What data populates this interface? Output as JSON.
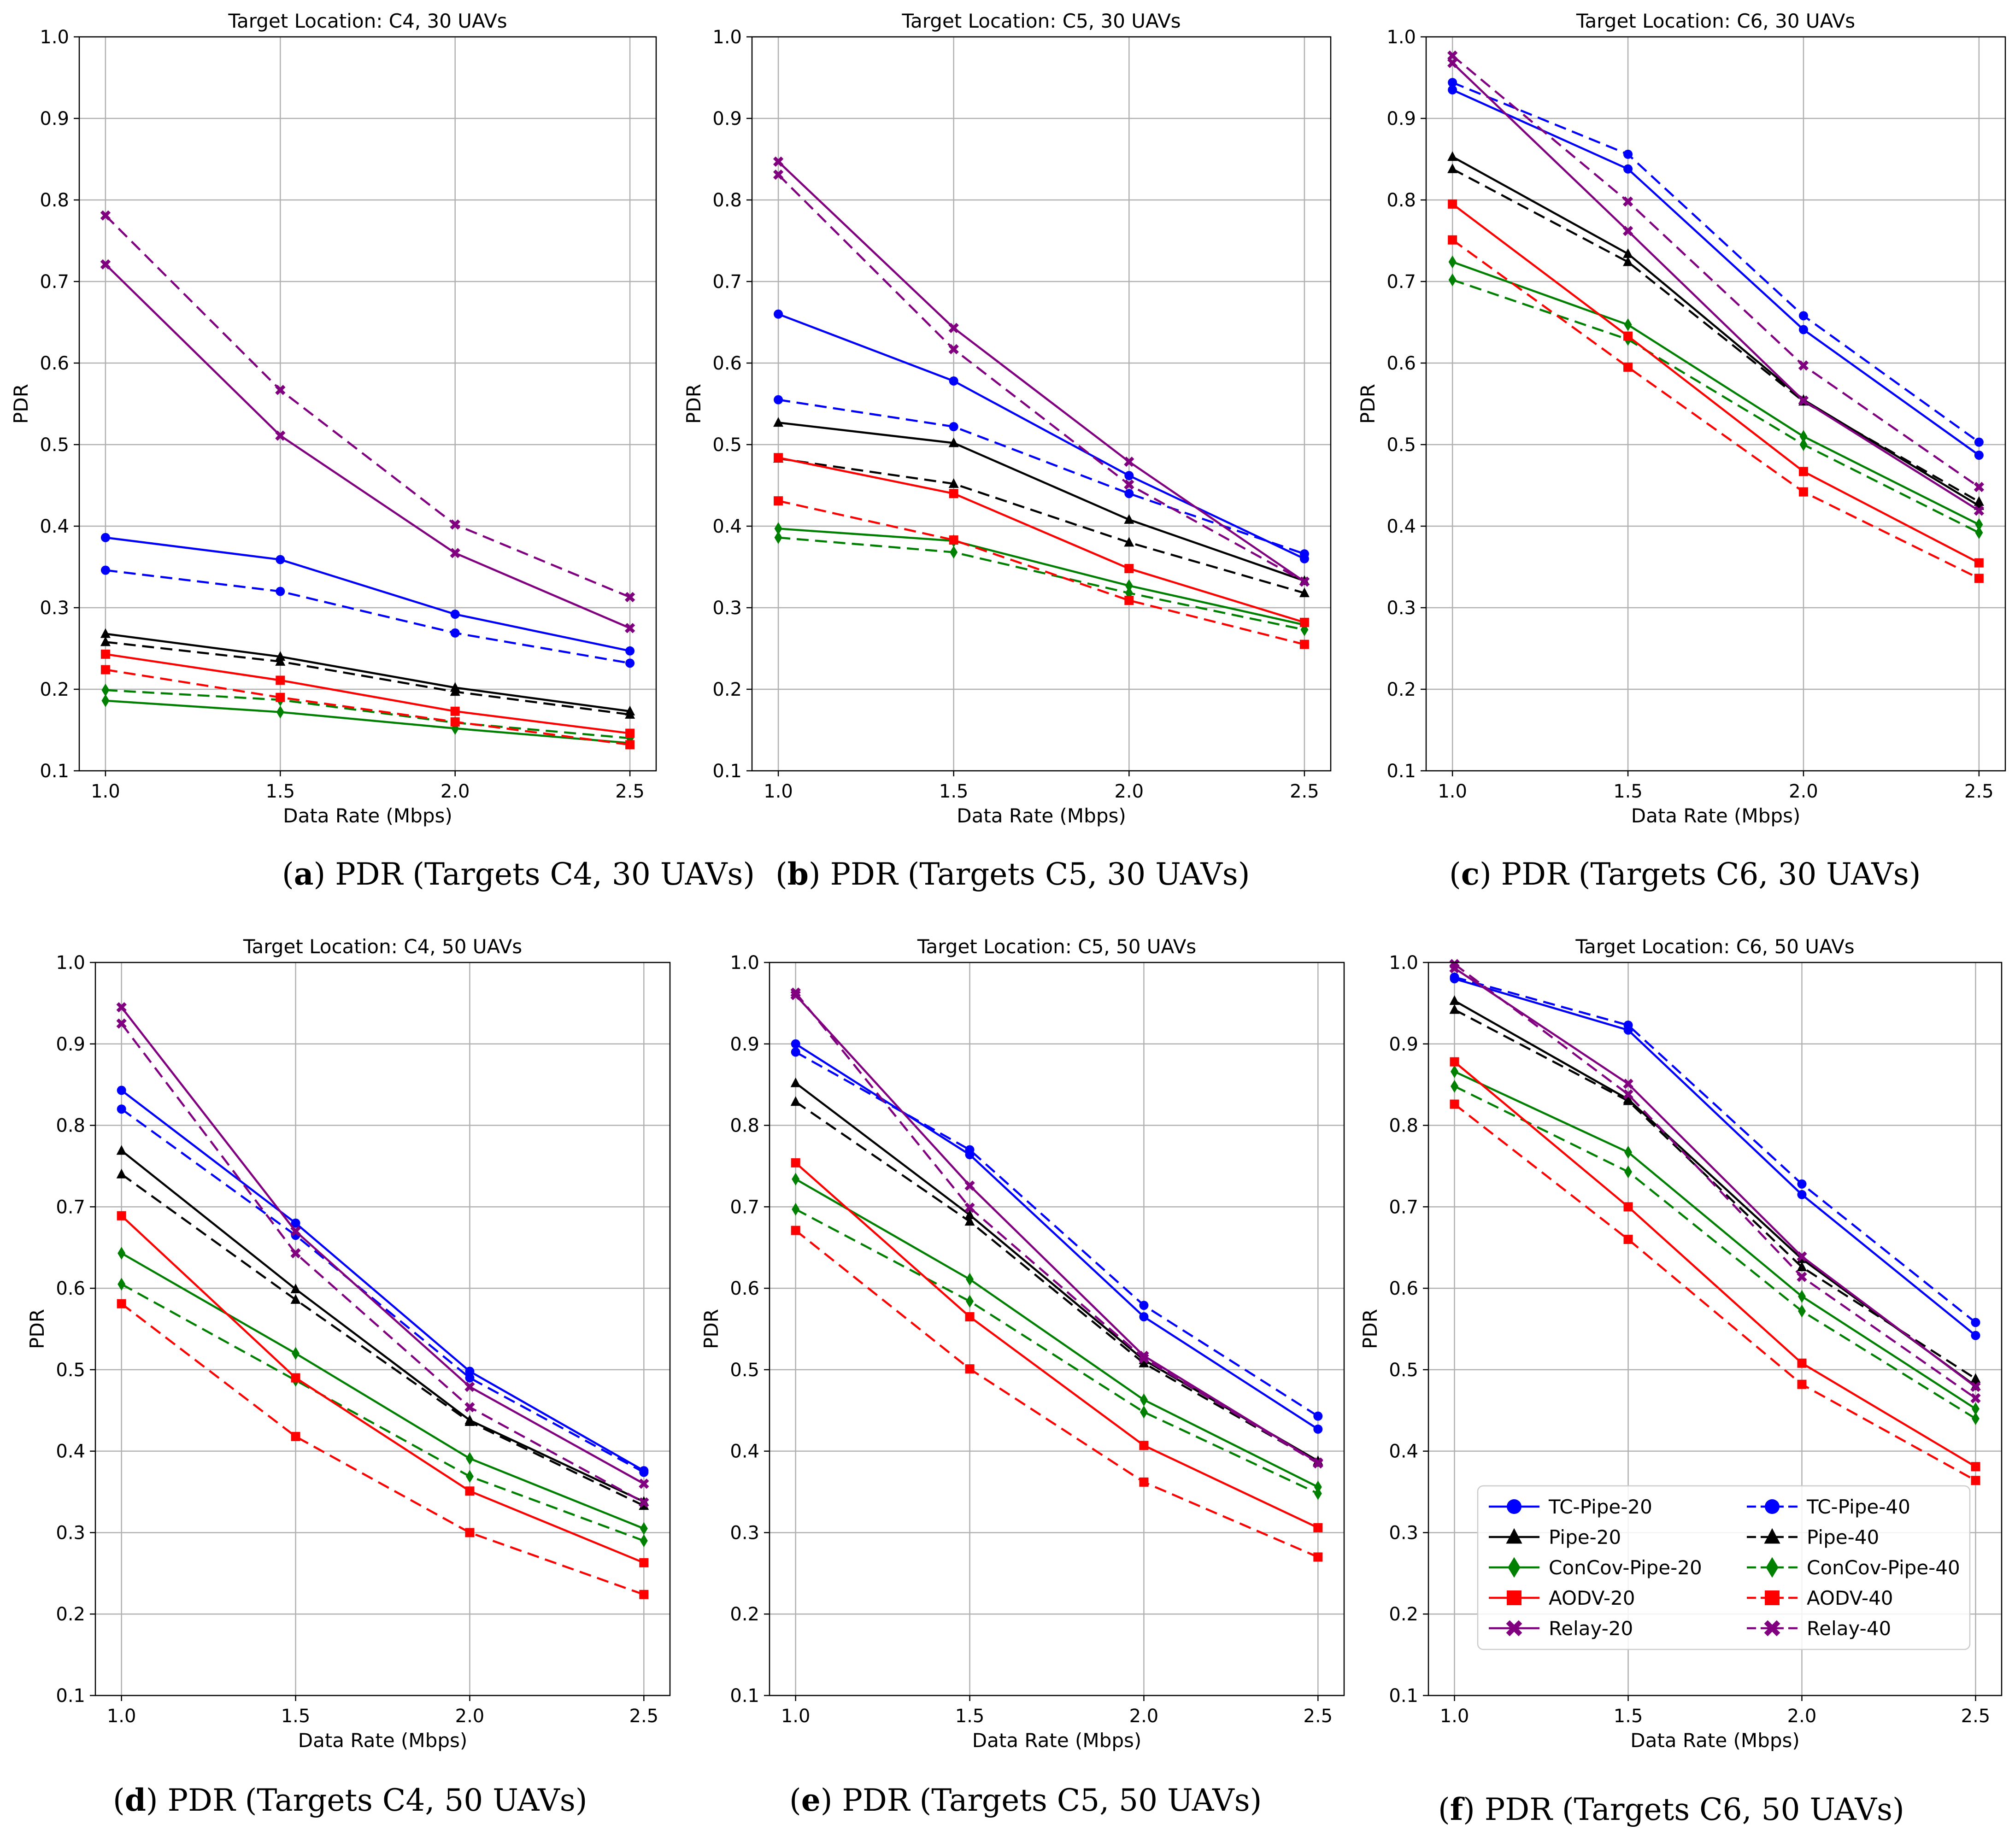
{
  "colors": {
    "TC-Pipe": "#0000ff",
    "Pipe": "#000000",
    "ConCov-Pipe": "#008000",
    "AODV": "#ff0000",
    "Relay": "#800080"
  },
  "legend": [
    {
      "label": "TC-Pipe-20",
      "method": "TC-Pipe",
      "marker": "circle",
      "dash": "solid"
    },
    {
      "label": "Pipe-20",
      "method": "Pipe",
      "marker": "triangle",
      "dash": "solid"
    },
    {
      "label": "ConCov-Pipe-20",
      "method": "ConCov-Pipe",
      "marker": "diamond",
      "dash": "solid"
    },
    {
      "label": "AODV-20",
      "method": "AODV",
      "marker": "square",
      "dash": "solid"
    },
    {
      "label": "Relay-20",
      "method": "Relay",
      "marker": "x",
      "dash": "solid"
    },
    {
      "label": "TC-Pipe-40",
      "method": "TC-Pipe",
      "marker": "circle",
      "dash": "dashed"
    },
    {
      "label": "Pipe-40",
      "method": "Pipe",
      "marker": "triangle",
      "dash": "dashed"
    },
    {
      "label": "ConCov-Pipe-40",
      "method": "ConCov-Pipe",
      "marker": "diamond",
      "dash": "dashed"
    },
    {
      "label": "AODV-40",
      "method": "AODV",
      "marker": "square",
      "dash": "dashed"
    },
    {
      "label": "Relay-40",
      "method": "Relay",
      "marker": "x",
      "dash": "dashed"
    }
  ],
  "chart_data": [
    {
      "type": "line",
      "title": "Target Location: C4, 30 UAVs",
      "caption_letter": "(a)",
      "caption_text": " PDR (Targets C4, 30 UAVs)",
      "xlabel": "Data Rate (Mbps)",
      "ylabel": "PDR",
      "x": [
        1.0,
        1.5,
        2.0,
        2.5
      ],
      "x_ticks": [
        "1.0",
        "1.5",
        "2.0",
        "2.5"
      ],
      "y_ticks": [
        "0.1",
        "0.2",
        "0.3",
        "0.4",
        "0.5",
        "0.6",
        "0.7",
        "0.8",
        "0.9",
        "1.0"
      ],
      "ylim": [
        0.1,
        1.0
      ],
      "grid": true,
      "series": [
        {
          "name": "TC-Pipe-20",
          "values": [
            0.386,
            0.359,
            0.292,
            0.247
          ]
        },
        {
          "name": "TC-Pipe-40",
          "values": [
            0.346,
            0.32,
            0.269,
            0.232
          ]
        },
        {
          "name": "Pipe-20",
          "values": [
            0.268,
            0.24,
            0.202,
            0.173
          ]
        },
        {
          "name": "Pipe-40",
          "values": [
            0.258,
            0.234,
            0.197,
            0.169
          ]
        },
        {
          "name": "ConCov-Pipe-20",
          "values": [
            0.186,
            0.172,
            0.152,
            0.134
          ]
        },
        {
          "name": "ConCov-Pipe-40",
          "values": [
            0.199,
            0.187,
            0.159,
            0.14
          ]
        },
        {
          "name": "AODV-20",
          "values": [
            0.243,
            0.211,
            0.173,
            0.146
          ]
        },
        {
          "name": "AODV-40",
          "values": [
            0.224,
            0.19,
            0.16,
            0.132
          ]
        },
        {
          "name": "Relay-20",
          "values": [
            0.721,
            0.511,
            0.367,
            0.275
          ]
        },
        {
          "name": "Relay-40",
          "values": [
            0.781,
            0.567,
            0.402,
            0.313
          ]
        }
      ]
    },
    {
      "type": "line",
      "title": "Target Location: C5, 30 UAVs",
      "caption_letter": "(b)",
      "caption_text": " PDR (Targets C5, 30 UAVs)",
      "xlabel": "Data Rate (Mbps)",
      "ylabel": "PDR",
      "x": [
        1.0,
        1.5,
        2.0,
        2.5
      ],
      "x_ticks": [
        "1.0",
        "1.5",
        "2.0",
        "2.5"
      ],
      "y_ticks": [
        "0.1",
        "0.2",
        "0.3",
        "0.4",
        "0.5",
        "0.6",
        "0.7",
        "0.8",
        "0.9",
        "1.0"
      ],
      "ylim": [
        0.1,
        1.0
      ],
      "grid": true,
      "series": [
        {
          "name": "TC-Pipe-20",
          "values": [
            0.66,
            0.578,
            0.462,
            0.36
          ]
        },
        {
          "name": "TC-Pipe-40",
          "values": [
            0.555,
            0.522,
            0.44,
            0.366
          ]
        },
        {
          "name": "Pipe-20",
          "values": [
            0.527,
            0.502,
            0.408,
            0.333
          ]
        },
        {
          "name": "Pipe-40",
          "values": [
            0.483,
            0.452,
            0.38,
            0.318
          ]
        },
        {
          "name": "ConCov-Pipe-20",
          "values": [
            0.397,
            0.382,
            0.327,
            0.279
          ]
        },
        {
          "name": "ConCov-Pipe-40",
          "values": [
            0.386,
            0.368,
            0.318,
            0.273
          ]
        },
        {
          "name": "AODV-20",
          "values": [
            0.484,
            0.44,
            0.348,
            0.282
          ]
        },
        {
          "name": "AODV-40",
          "values": [
            0.431,
            0.383,
            0.309,
            0.255
          ]
        },
        {
          "name": "Relay-20",
          "values": [
            0.847,
            0.643,
            0.479,
            0.332
          ]
        },
        {
          "name": "Relay-40",
          "values": [
            0.831,
            0.617,
            0.451,
            0.332
          ]
        }
      ]
    },
    {
      "type": "line",
      "title": "Target Location: C6, 30 UAVs",
      "caption_letter": "(c)",
      "caption_text": " PDR (Targets C6, 30 UAVs)",
      "xlabel": "Data Rate (Mbps)",
      "ylabel": "PDR",
      "x": [
        1.0,
        1.5,
        2.0,
        2.5
      ],
      "x_ticks": [
        "1.0",
        "1.5",
        "2.0",
        "2.5"
      ],
      "y_ticks": [
        "0.1",
        "0.2",
        "0.3",
        "0.4",
        "0.5",
        "0.6",
        "0.7",
        "0.8",
        "0.9",
        "1.0"
      ],
      "ylim": [
        0.1,
        1.0
      ],
      "grid": true,
      "series": [
        {
          "name": "TC-Pipe-20",
          "values": [
            0.935,
            0.838,
            0.641,
            0.487
          ]
        },
        {
          "name": "TC-Pipe-40",
          "values": [
            0.944,
            0.856,
            0.658,
            0.503
          ]
        },
        {
          "name": "Pipe-20",
          "values": [
            0.853,
            0.734,
            0.555,
            0.425
          ]
        },
        {
          "name": "Pipe-40",
          "values": [
            0.838,
            0.724,
            0.553,
            0.43
          ]
        },
        {
          "name": "ConCov-Pipe-20",
          "values": [
            0.724,
            0.647,
            0.51,
            0.402
          ]
        },
        {
          "name": "ConCov-Pipe-40",
          "values": [
            0.702,
            0.629,
            0.5,
            0.392
          ]
        },
        {
          "name": "AODV-20",
          "values": [
            0.795,
            0.633,
            0.467,
            0.355
          ]
        },
        {
          "name": "AODV-40",
          "values": [
            0.751,
            0.595,
            0.442,
            0.336
          ]
        },
        {
          "name": "Relay-20",
          "values": [
            0.968,
            0.762,
            0.554,
            0.419
          ]
        },
        {
          "name": "Relay-40",
          "values": [
            0.977,
            0.798,
            0.597,
            0.448
          ]
        }
      ]
    },
    {
      "type": "line",
      "title": "Target Location: C4, 50 UAVs",
      "caption_letter": "(d)",
      "caption_text": " PDR (Targets C4, 50 UAVs)",
      "xlabel": "Data Rate (Mbps)",
      "ylabel": "PDR",
      "x": [
        1.0,
        1.5,
        2.0,
        2.5
      ],
      "x_ticks": [
        "1.0",
        "1.5",
        "2.0",
        "2.5"
      ],
      "y_ticks": [
        "0.1",
        "0.2",
        "0.3",
        "0.4",
        "0.5",
        "0.6",
        "0.7",
        "0.8",
        "0.9",
        "1.0"
      ],
      "ylim": [
        0.1,
        1.0
      ],
      "grid": true,
      "series": [
        {
          "name": "TC-Pipe-20",
          "values": [
            0.843,
            0.68,
            0.498,
            0.376
          ]
        },
        {
          "name": "TC-Pipe-40",
          "values": [
            0.82,
            0.665,
            0.49,
            0.374
          ]
        },
        {
          "name": "Pipe-20",
          "values": [
            0.769,
            0.599,
            0.438,
            0.338
          ]
        },
        {
          "name": "Pipe-40",
          "values": [
            0.74,
            0.586,
            0.436,
            0.333
          ]
        },
        {
          "name": "ConCov-Pipe-20",
          "values": [
            0.643,
            0.52,
            0.391,
            0.305
          ]
        },
        {
          "name": "ConCov-Pipe-40",
          "values": [
            0.605,
            0.487,
            0.369,
            0.29
          ]
        },
        {
          "name": "AODV-20",
          "values": [
            0.689,
            0.49,
            0.351,
            0.263
          ]
        },
        {
          "name": "AODV-40",
          "values": [
            0.581,
            0.418,
            0.3,
            0.224
          ]
        },
        {
          "name": "Relay-20",
          "values": [
            0.945,
            0.67,
            0.479,
            0.36
          ]
        },
        {
          "name": "Relay-40",
          "values": [
            0.925,
            0.643,
            0.454,
            0.337
          ]
        }
      ]
    },
    {
      "type": "line",
      "title": "Target Location: C5, 50 UAVs",
      "caption_letter": "(e)",
      "caption_text": " PDR (Targets C5, 50 UAVs)",
      "xlabel": "Data Rate (Mbps)",
      "ylabel": "PDR",
      "x": [
        1.0,
        1.5,
        2.0,
        2.5
      ],
      "x_ticks": [
        "1.0",
        "1.5",
        "2.0",
        "2.5"
      ],
      "y_ticks": [
        "0.1",
        "0.2",
        "0.3",
        "0.4",
        "0.5",
        "0.6",
        "0.7",
        "0.8",
        "0.9",
        "1.0"
      ],
      "ylim": [
        0.1,
        1.0
      ],
      "grid": true,
      "series": [
        {
          "name": "TC-Pipe-20",
          "values": [
            0.9,
            0.764,
            0.565,
            0.427
          ]
        },
        {
          "name": "TC-Pipe-40",
          "values": [
            0.89,
            0.77,
            0.579,
            0.443
          ]
        },
        {
          "name": "Pipe-20",
          "values": [
            0.852,
            0.69,
            0.512,
            0.388
          ]
        },
        {
          "name": "Pipe-40",
          "values": [
            0.829,
            0.682,
            0.508,
            0.386
          ]
        },
        {
          "name": "ConCov-Pipe-20",
          "values": [
            0.734,
            0.611,
            0.463,
            0.356
          ]
        },
        {
          "name": "ConCov-Pipe-40",
          "values": [
            0.697,
            0.584,
            0.448,
            0.348
          ]
        },
        {
          "name": "AODV-20",
          "values": [
            0.754,
            0.565,
            0.407,
            0.306
          ]
        },
        {
          "name": "AODV-40",
          "values": [
            0.671,
            0.501,
            0.362,
            0.27
          ]
        },
        {
          "name": "Relay-20",
          "values": [
            0.96,
            0.726,
            0.517,
            0.386
          ]
        },
        {
          "name": "Relay-40",
          "values": [
            0.963,
            0.699,
            0.514,
            0.385
          ]
        }
      ]
    },
    {
      "type": "line",
      "title": "Target Location: C6, 50 UAVs",
      "caption_letter": "(f)",
      "caption_text": " PDR (Targets C6, 50 UAVs)",
      "xlabel": "Data Rate (Mbps)",
      "ylabel": "PDR",
      "x": [
        1.0,
        1.5,
        2.0,
        2.5
      ],
      "x_ticks": [
        "1.0",
        "1.5",
        "2.0",
        "2.5"
      ],
      "y_ticks": [
        "0.1",
        "0.2",
        "0.3",
        "0.4",
        "0.5",
        "0.6",
        "0.7",
        "0.8",
        "0.9",
        "1.0"
      ],
      "ylim": [
        0.1,
        1.0
      ],
      "grid": true,
      "legend_position": "lower-left",
      "series": [
        {
          "name": "TC-Pipe-20",
          "values": [
            0.98,
            0.917,
            0.715,
            0.542
          ]
        },
        {
          "name": "TC-Pipe-40",
          "values": [
            0.982,
            0.923,
            0.728,
            0.558
          ]
        },
        {
          "name": "Pipe-20",
          "values": [
            0.953,
            0.832,
            0.636,
            0.48
          ]
        },
        {
          "name": "Pipe-40",
          "values": [
            0.942,
            0.83,
            0.626,
            0.489
          ]
        },
        {
          "name": "ConCov-Pipe-20",
          "values": [
            0.866,
            0.767,
            0.59,
            0.452
          ]
        },
        {
          "name": "ConCov-Pipe-40",
          "values": [
            0.848,
            0.743,
            0.572,
            0.44
          ]
        },
        {
          "name": "AODV-20",
          "values": [
            0.878,
            0.7,
            0.508,
            0.381
          ]
        },
        {
          "name": "AODV-40",
          "values": [
            0.826,
            0.66,
            0.482,
            0.364
          ]
        },
        {
          "name": "Relay-20",
          "values": [
            0.993,
            0.851,
            0.639,
            0.479
          ]
        },
        {
          "name": "Relay-40",
          "values": [
            0.998,
            0.838,
            0.614,
            0.465
          ]
        }
      ]
    }
  ]
}
